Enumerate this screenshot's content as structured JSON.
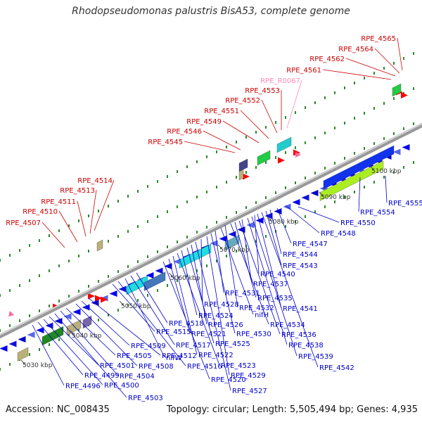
{
  "title": "Rhodopseudomonas palustris BisA53, complete genome",
  "footer": {
    "accession": "Accession: NC_008435",
    "topology": "Topology: circular; Length: 5,505,494 bp; Genes: 4,935"
  },
  "colors": {
    "forward_label": "#cc0000",
    "reverse_label": "#0000cc",
    "rna_label": "#ff88bb",
    "backbone": "#999999",
    "dots": "#2a8a2a"
  },
  "kbp_labels": [
    "5030 kbp",
    "5040 kbp",
    "5050 kbp",
    "5060 kbp",
    "5070 kbp",
    "5080 kbp",
    "5090 kbp",
    "5100 kbp"
  ],
  "forward_labels": [
    "RPE_4507",
    "RPE_4510",
    "RPE_4511",
    "RPE_4513",
    "RPE_4514",
    "RPE_4545",
    "RPE_4546",
    "RPE_4549",
    "RPE_4551",
    "RPE_4552",
    "RPE_4553",
    "RPE_4561",
    "RPE_4562",
    "RPE_4564",
    "RPE_4565"
  ],
  "rna_labels": [
    "RPE_R0067"
  ],
  "reverse_labels": [
    "RPE_4496",
    "RPE_4499",
    "RPE_4500",
    "RPE_4501",
    "RPE_4503",
    "RPE_4504",
    "RPE_4505",
    "RPE_4508",
    "RPE_4509",
    "RPE_4512",
    "RPE_4515",
    "RPE_4516",
    "nifW",
    "RPE_4517",
    "RPE_4518",
    "RPE_4520",
    "RPE_4521",
    "RPE_4522",
    "RPE_4523",
    "RPE_4524",
    "RPE_4525",
    "RPE_4526",
    "RPE_4527",
    "RPE_4528",
    "RPE_4529",
    "RPE_4530",
    "RPE_4531",
    "nifH",
    "RPE_4532",
    "RPE_4534",
    "RPE_4535",
    "RPE_4536",
    "RPE_4537",
    "RPE_4538",
    "RPE_4539",
    "RPE_4540",
    "RPE_4541",
    "RPE_4542",
    "RPE_4543",
    "RPE_4544",
    "RPE_4547",
    "RPE_4548",
    "RPE_4550",
    "RPE_4554",
    "RPE_4555"
  ]
}
